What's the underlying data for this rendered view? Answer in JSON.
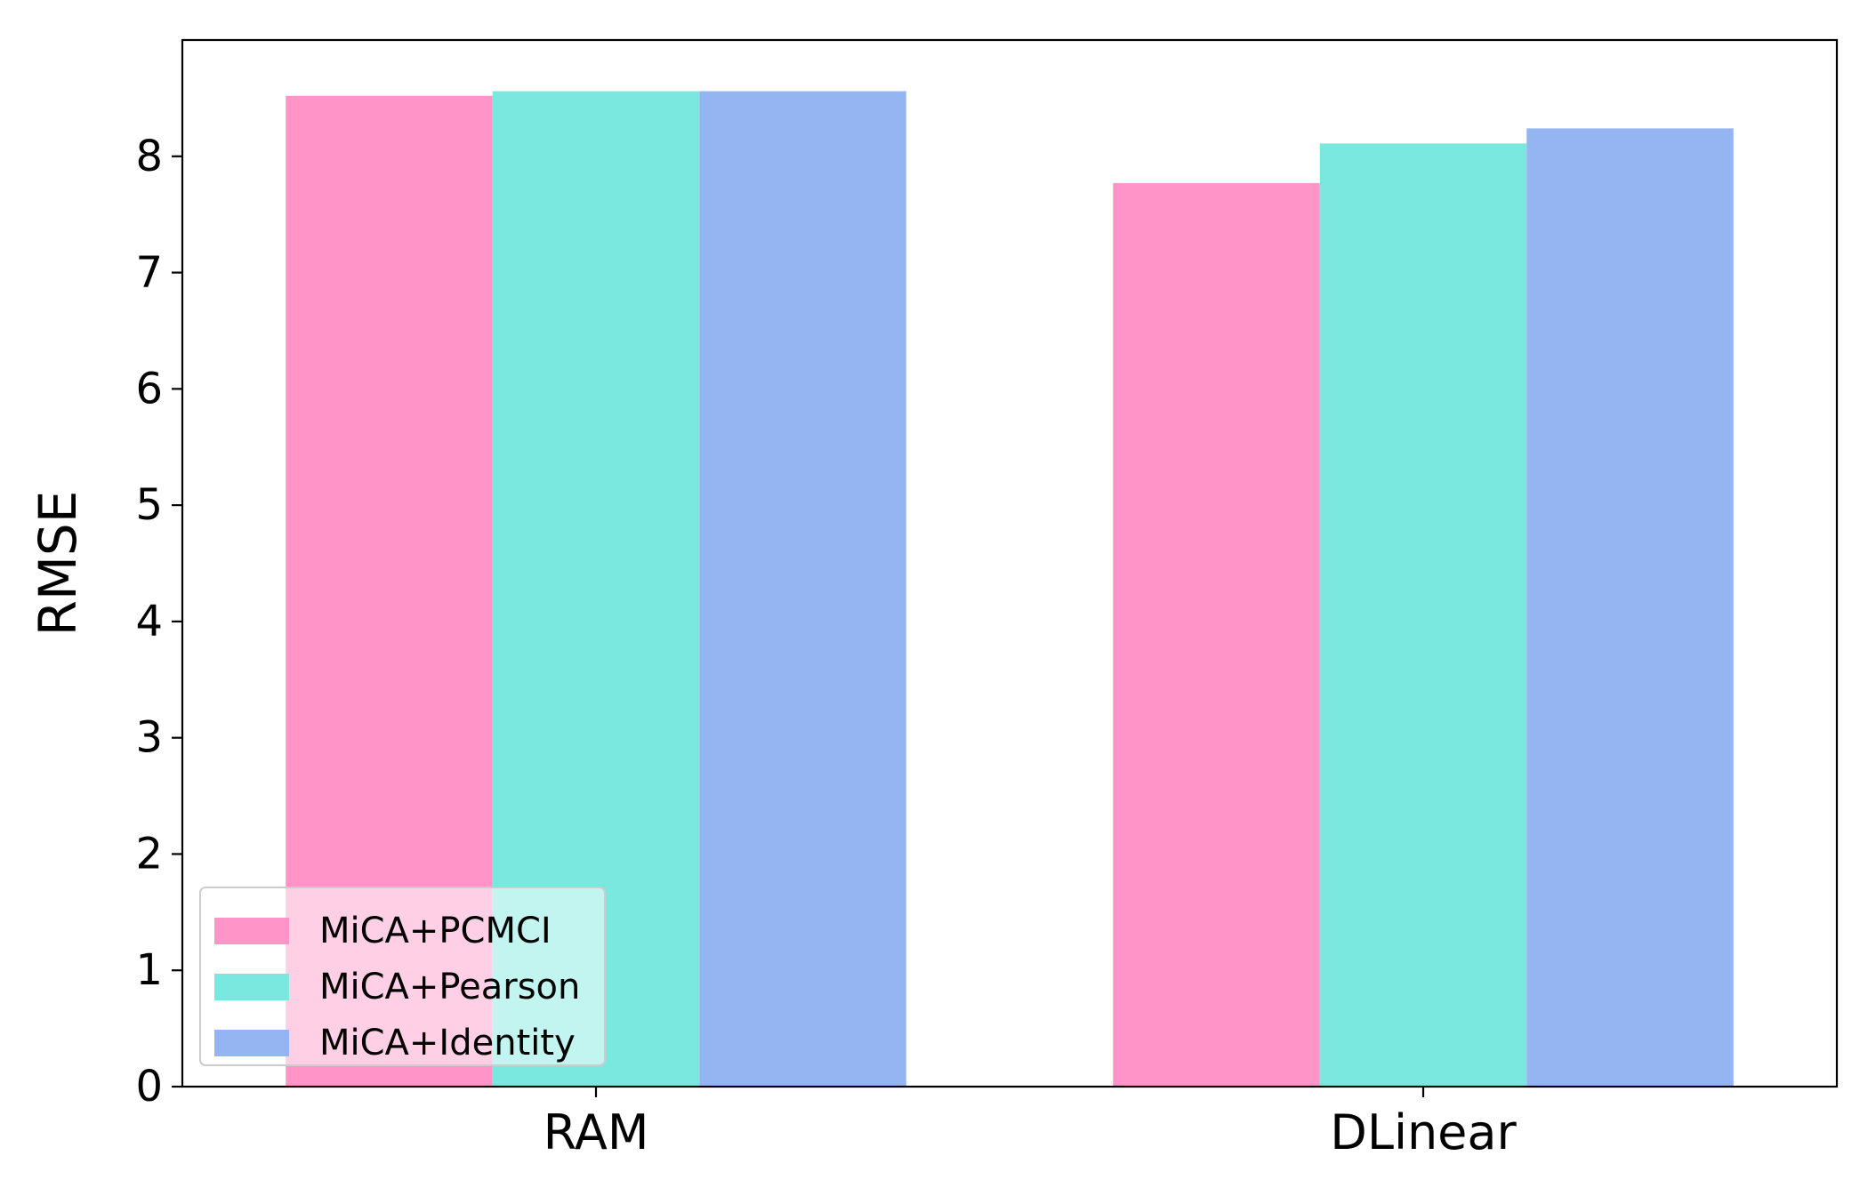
{
  "chart_data": {
    "type": "bar",
    "title": "",
    "xlabel": "",
    "ylabel": "RMSE",
    "categories": [
      "RAM",
      "DLinear"
    ],
    "series": [
      {
        "name": "MiCA+PCMCI",
        "color": "#ff94c8",
        "values": [
          8.52,
          7.77
        ]
      },
      {
        "name": "MiCA+Pearson",
        "color": "#7ae8de",
        "values": [
          8.56,
          8.11
        ]
      },
      {
        "name": "MiCA+Identity",
        "color": "#94b4f2",
        "values": [
          8.56,
          8.24
        ]
      }
    ],
    "ylim": [
      0,
      9.0
    ],
    "yticks": [
      0,
      1,
      2,
      3,
      4,
      5,
      6,
      7,
      8
    ],
    "grid": false,
    "legend_position": "lower-left"
  }
}
